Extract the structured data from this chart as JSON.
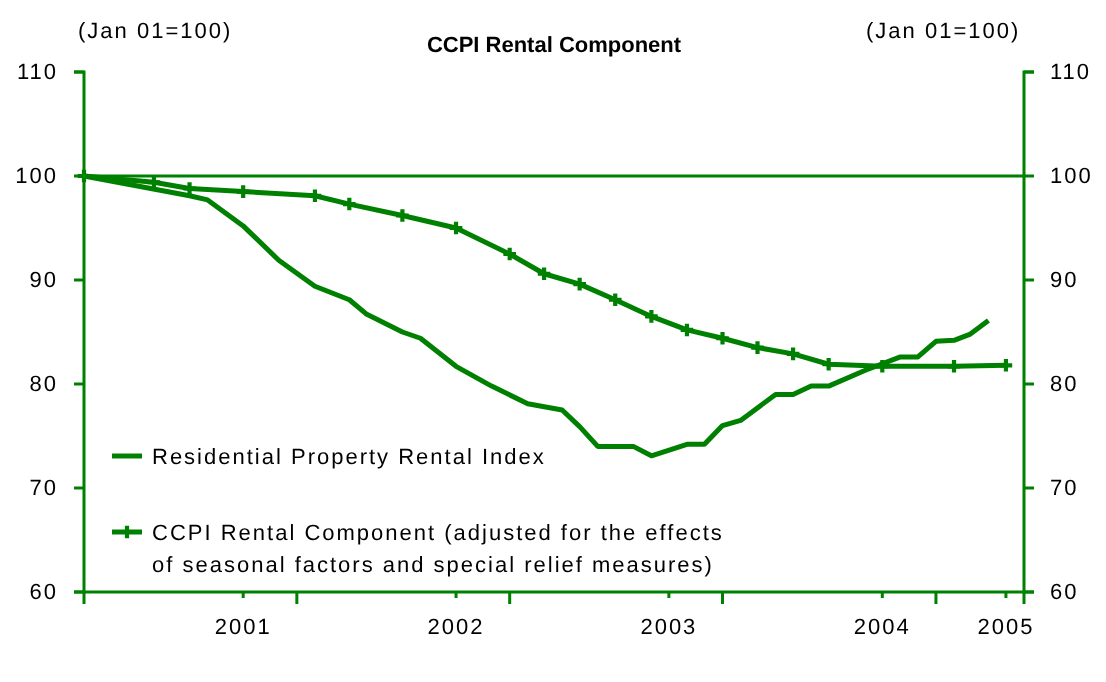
{
  "chart_data": {
    "type": "line",
    "title": "CCPI Rental Component",
    "ylabel": "(Jan 01=100)",
    "y2label": "(Jan 01=100)",
    "xlim": [
      "2001-01-01",
      "2005-06-01"
    ],
    "xticks": [
      {
        "value": "2001-10",
        "label": "2001"
      },
      {
        "value": "2002-01",
        "label": null
      },
      {
        "value": "2002-10",
        "label": "2002"
      },
      {
        "value": "2003-01",
        "label": null
      },
      {
        "value": "2003-10",
        "label": "2003"
      },
      {
        "value": "2004-01",
        "label": null
      },
      {
        "value": "2004-10",
        "label": "2004"
      },
      {
        "value": "2005-01",
        "label": null
      },
      {
        "value": "2005-05",
        "label": "2005"
      }
    ],
    "ylim": [
      60,
      110
    ],
    "yticks": [
      60,
      70,
      80,
      90,
      100,
      110
    ],
    "y2lim": [
      60,
      110
    ],
    "y2ticks": [
      60,
      70,
      80,
      90,
      100,
      110
    ],
    "grid": false,
    "legend": "bottom left",
    "line_style": "solid",
    "ref_lines": [
      {
        "axis": "y",
        "value": 100,
        "color": "#008000"
      }
    ],
    "series": [
      {
        "name": "Residential Property Rental Index",
        "color": "#008000",
        "marker": "none",
        "x": [
          "2001-01",
          "2001-07",
          "2001-08",
          "2001-10",
          "2001-12",
          "2002-02",
          "2002-04",
          "2002-05",
          "2002-07",
          "2002-08",
          "2002-10",
          "2002-12",
          "2003-02",
          "2003-04",
          "2003-05",
          "2003-06",
          "2003-08",
          "2003-09",
          "2003-11",
          "2003-12",
          "2004-01",
          "2004-02",
          "2004-04",
          "2004-05",
          "2004-06",
          "2004-07",
          "2004-09",
          "2004-11",
          "2004-12",
          "2005-01",
          "2005-02",
          "2005-03",
          "2005-04"
        ],
        "values": [
          100,
          98.1,
          97.7,
          95.2,
          91.9,
          89.4,
          88.1,
          86.7,
          85,
          84.4,
          81.7,
          79.8,
          78.1,
          77.5,
          75.9,
          74,
          74,
          73.1,
          74.2,
          74.2,
          76,
          76.5,
          79,
          79,
          79.8,
          79.8,
          81.3,
          82.6,
          82.6,
          84.1,
          84.2,
          84.8,
          86.1
        ]
      },
      {
        "name": "CCPI Rental Component (adjusted for the effects of seasonal factors and special relief measures)",
        "color": "#008000",
        "marker": "cross",
        "x": [
          "2001-01",
          "2001-05",
          "2001-07",
          "2001-10",
          "2002-02",
          "2002-04",
          "2002-07",
          "2002-10",
          "2003-01",
          "2003-03",
          "2003-05",
          "2003-07",
          "2003-09",
          "2003-11",
          "2004-01",
          "2004-03",
          "2004-05",
          "2004-07",
          "2004-10",
          "2005-02",
          "2005-05"
        ],
        "values": [
          100,
          99.4,
          98.8,
          98.5,
          98.1,
          97.3,
          96.2,
          95,
          92.5,
          90.6,
          89.6,
          88.1,
          86.5,
          85.2,
          84.4,
          83.5,
          82.9,
          81.9,
          81.7,
          81.7,
          81.8
        ]
      }
    ]
  }
}
